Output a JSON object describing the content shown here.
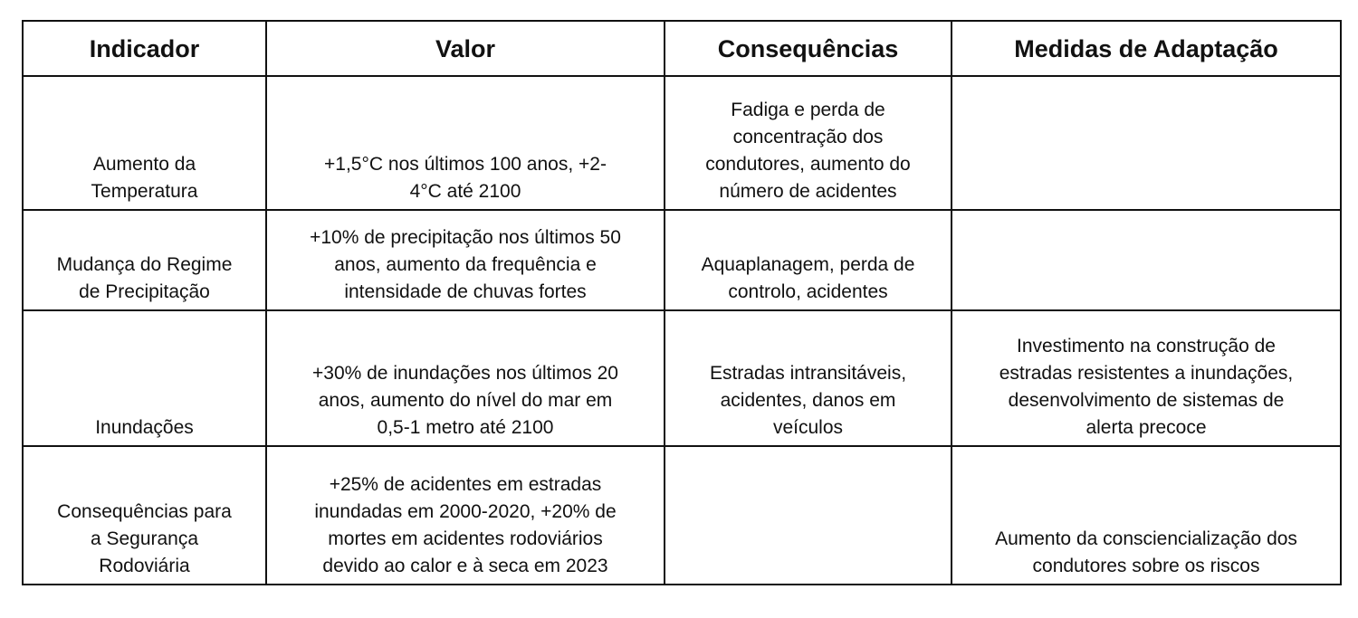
{
  "headers": [
    "Indicador",
    "Valor",
    "Consequências",
    "Medidas de Adaptação"
  ],
  "rows": [
    [
      "Aumento da\nTemperatura",
      "+1,5°C nos últimos 100 anos, +2-\n4°C até 2100",
      "Fadiga e perda de\nconcentração dos\ncondutores, aumento do\nnúmero de acidentes",
      ""
    ],
    [
      "Mudança do Regime\nde Precipitação",
      "+10% de precipitação nos últimos 50\nanos, aumento da frequência e\nintensidade de chuvas fortes",
      "Aquaplanagem, perda de\ncontrolo, acidentes",
      ""
    ],
    [
      "Inundações",
      "+30% de inundações nos últimos 20\nanos, aumento do nível do mar em\n0,5-1 metro até 2100",
      "Estradas intransitáveis,\nacidentes, danos em\nveículos",
      "Investimento na construção de\nestradas resistentes a inundações,\ndesenvolvimento de sistemas de\nalerta precoce"
    ],
    [
      "Consequências para\na Segurança\nRodoviária",
      "+25% de acidentes em estradas\ninundadas em 2000-2020, +20% de\nmortes em acidentes rodoviários\ndevido ao calor e à seca em 2023",
      "",
      "Aumento da consciencialização dos\ncondutores sobre os riscos"
    ]
  ]
}
